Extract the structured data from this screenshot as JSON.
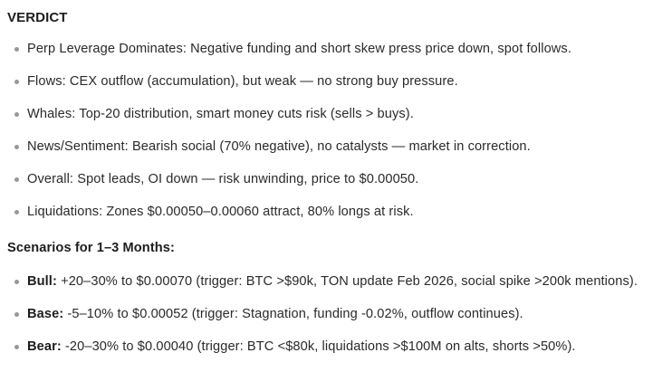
{
  "colors": {
    "background": "#ffffff",
    "text": "#2a2a2a",
    "heading": "#1d1d1d",
    "bullet_dot": "#9199a1"
  },
  "verdict": {
    "heading": "VERDICT",
    "items": [
      "Perp Leverage Dominates: Negative funding and short skew press price down, spot follows.",
      "Flows: CEX outflow (accumulation), but weak — no strong buy pressure.",
      "Whales: Top-20 distribution, smart money cuts risk (sells > buys).",
      "News/Sentiment: Bearish social (70% negative), no catalysts — market in correction.",
      "Overall: Spot leads, OI down — risk unwinding, price to $0.00050.",
      "Liquidations: Zones $0.00050–0.00060 attract, 80% longs at risk."
    ]
  },
  "scenarios": {
    "heading": "Scenarios for 1–3 Months:",
    "items": [
      {
        "label": "Bull:",
        "text": " +20–30% to $0.00070 (trigger: BTC >$90k, TON update Feb 2026, social spike >200k mentions)."
      },
      {
        "label": "Base:",
        "text": " -5–10% to $0.00052 (trigger: Stagnation, funding -0.02%, outflow continues)."
      },
      {
        "label": "Bear:",
        "text": " -20–30% to $0.00040 (trigger: BTC <$80k, liquidations >$100M on alts, shorts >50%)."
      }
    ]
  }
}
